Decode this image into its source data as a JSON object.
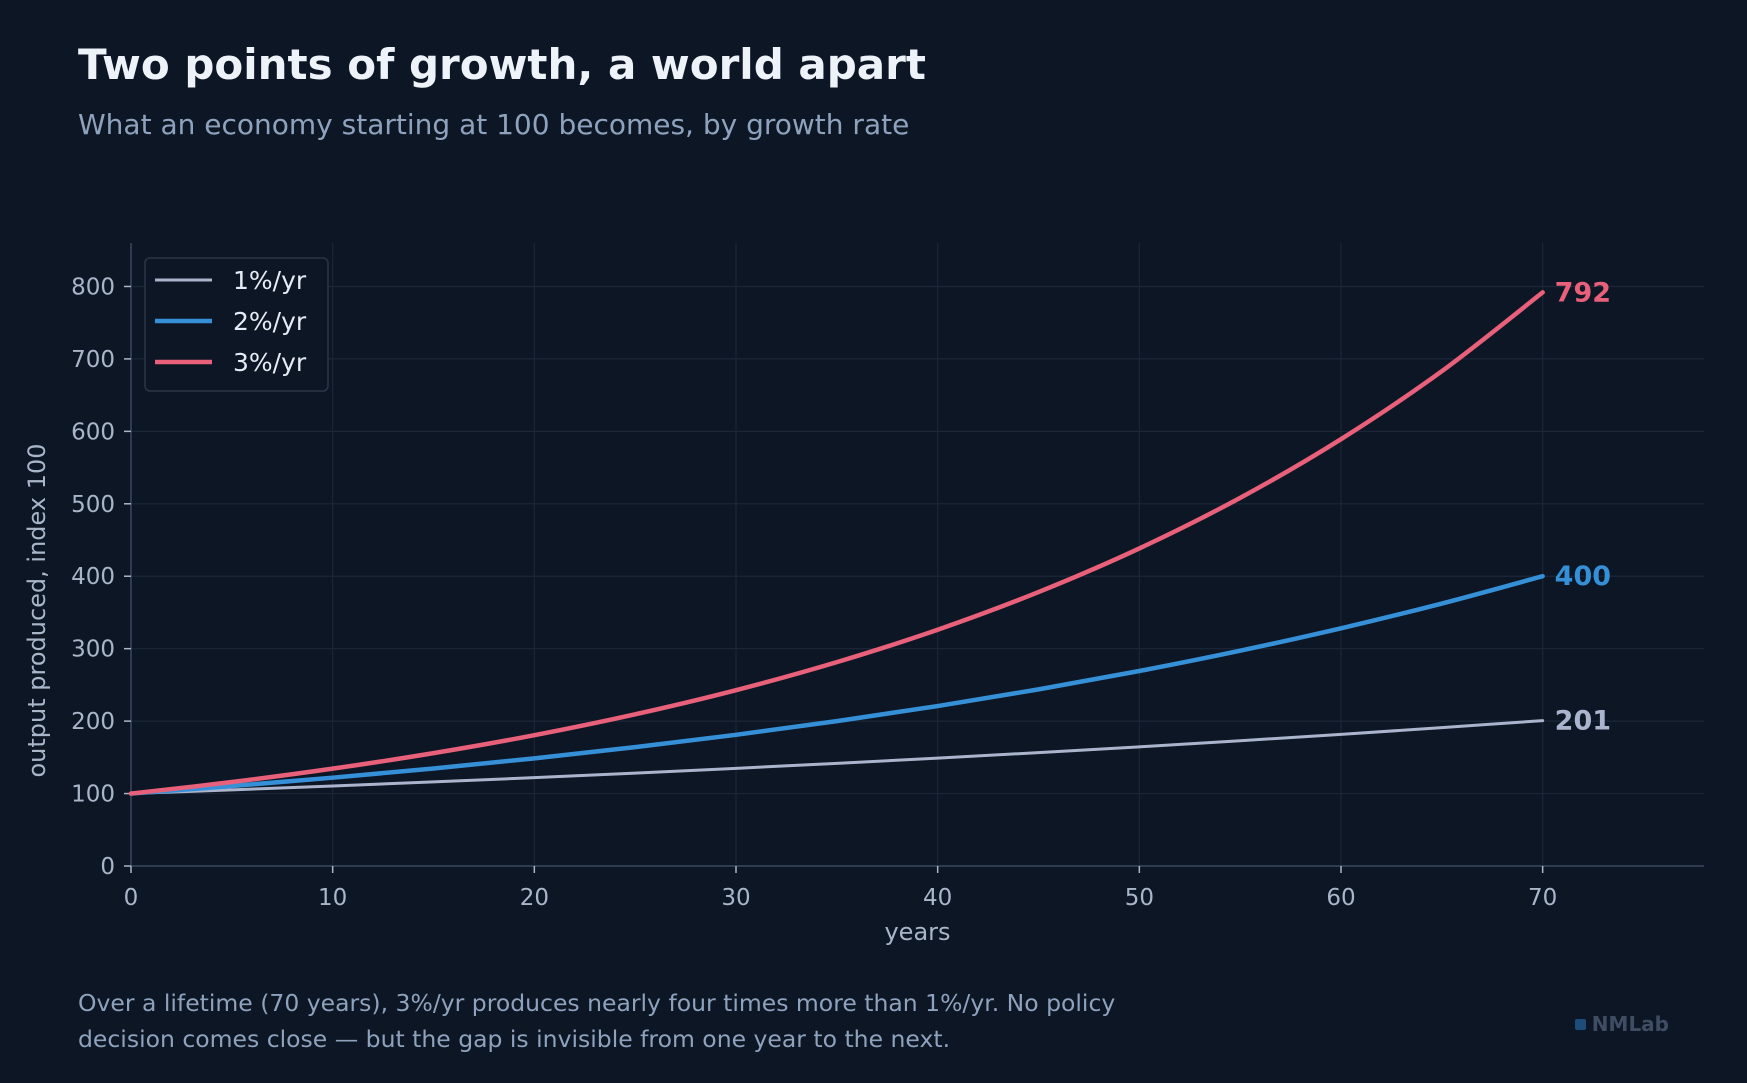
{
  "title": "Two points of growth, a world apart",
  "subtitle": "What an economy starting at 100 becomes, by growth rate",
  "note_line1": "Over a lifetime (70 years), 3%/yr produces nearly four times more than 1%/yr. No policy",
  "note_line2": "decision comes close — but the gap is invisible from one year to the next.",
  "brand": "NMLab",
  "colors": {
    "background": "#0d1624",
    "grid": "#1b2638",
    "axis": "#3a475c",
    "tick_text": "#a9b6c9",
    "series_1": "#aab4cc",
    "series_2": "#3590d8",
    "series_3": "#e8607a"
  },
  "chart_data": {
    "type": "line",
    "title": "",
    "xlabel": "years",
    "ylabel": "output produced, index 100",
    "xlim": [
      0,
      78
    ],
    "ylim": [
      0,
      860
    ],
    "x_ticks": [
      0,
      10,
      20,
      30,
      40,
      50,
      60,
      70
    ],
    "y_ticks": [
      0,
      100,
      200,
      300,
      400,
      500,
      600,
      700,
      800
    ],
    "grid": true,
    "legend_position": "top-left",
    "x": [
      0,
      5,
      10,
      15,
      20,
      25,
      30,
      35,
      40,
      45,
      50,
      55,
      60,
      65,
      70
    ],
    "series": [
      {
        "name": "1%/yr",
        "color": "#aab4cc",
        "end_label": "201",
        "values": [
          100,
          105.1,
          110.5,
          116.1,
          122.0,
          128.2,
          134.8,
          141.7,
          148.9,
          156.5,
          164.5,
          172.9,
          181.7,
          191.0,
          200.7
        ]
      },
      {
        "name": "2%/yr",
        "color": "#3590d8",
        "end_label": "400",
        "values": [
          100,
          110.4,
          121.9,
          134.6,
          148.6,
          164.1,
          181.1,
          200.0,
          220.8,
          243.8,
          269.2,
          297.2,
          328.1,
          362.3,
          400.0
        ]
      },
      {
        "name": "3%/yr",
        "color": "#e8607a",
        "end_label": "792",
        "values": [
          100,
          115.9,
          134.4,
          155.8,
          180.6,
          209.4,
          242.7,
          281.4,
          326.2,
          378.2,
          438.4,
          508.2,
          589.2,
          683.1,
          791.8
        ]
      }
    ]
  }
}
